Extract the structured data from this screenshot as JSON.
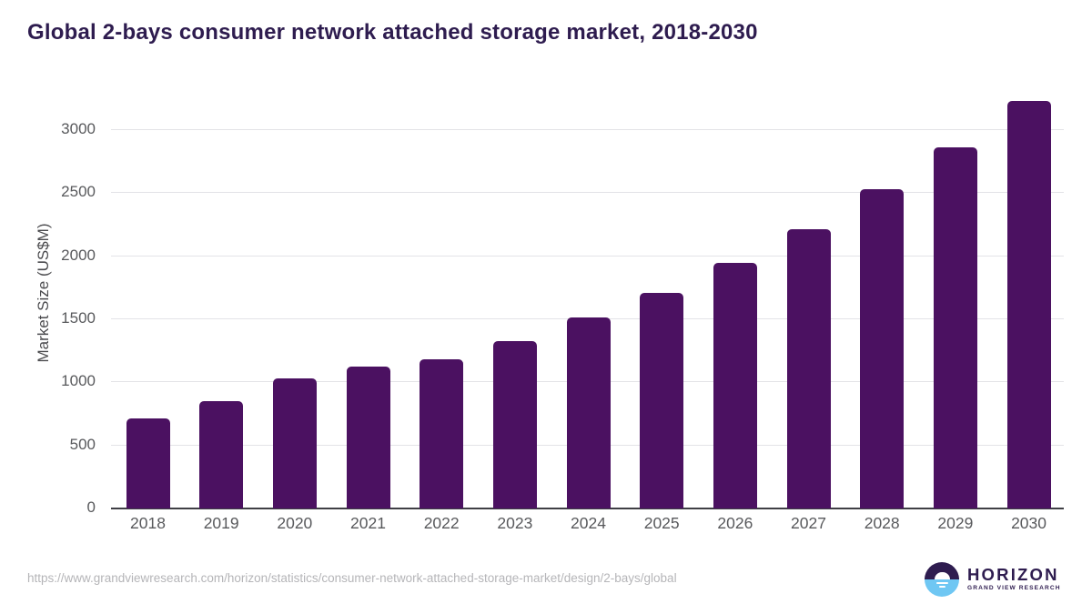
{
  "chart_data": {
    "type": "bar",
    "title": "Global 2-bays consumer network attached storage market, 2018-2030",
    "xlabel": "",
    "ylabel": "Market Size (US$M)",
    "categories": [
      "2018",
      "2019",
      "2020",
      "2021",
      "2022",
      "2023",
      "2024",
      "2025",
      "2026",
      "2027",
      "2028",
      "2029",
      "2030"
    ],
    "values": [
      714,
      848,
      1034,
      1124,
      1181,
      1328,
      1513,
      1712,
      1949,
      2215,
      2534,
      2860,
      3231
    ],
    "yticks": [
      0,
      500,
      1000,
      1500,
      2000,
      2500,
      3000
    ],
    "ylim": [
      0,
      3420
    ],
    "grid": "horizontal",
    "legend": "none",
    "bar_color": "#4b1161"
  },
  "footer": {
    "source_url": "https://www.grandviewresearch.com/horizon/statistics/consumer-network-attached-storage-market/design/2-bays/global",
    "logo": {
      "name": "HORIZON",
      "subtitle": "GRAND VIEW RESEARCH",
      "icon": "horizon-sunrise-icon"
    }
  },
  "colors": {
    "background": "#ffffff",
    "brand_purple": "#2e1c4f",
    "bar_purple": "#4b1161",
    "logo_blue": "#6fc7f3",
    "gridline": "#e3e3e7",
    "axis_line": "#3f3f44",
    "tick_text": "#58595c",
    "url_text": "#b5b5b8"
  }
}
